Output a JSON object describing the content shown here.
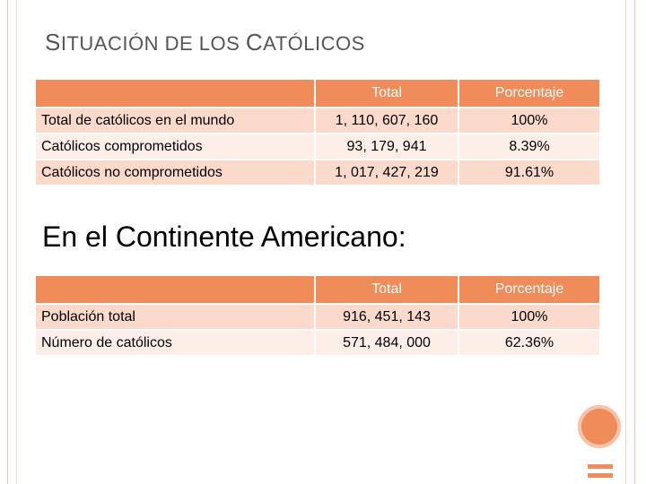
{
  "slide": {
    "title_first": "S",
    "title_rest1": "ITUACIÓN DE LOS ",
    "title_cap2": "C",
    "title_rest2": "ATÓLICOS",
    "subtitle": "En el Continente Americano:"
  },
  "table1": {
    "headers": [
      "",
      "Total",
      "Porcentaje"
    ],
    "rows": [
      [
        "Total de católicos en el mundo",
        "1, 110, 607, 160",
        "100%"
      ],
      [
        "Católicos comprometidos",
        "93, 179, 941",
        "8.39%"
      ],
      [
        "Católicos no comprometidos",
        "1, 017, 427, 219",
        "91.61%"
      ]
    ]
  },
  "table2": {
    "headers": [
      "",
      "Total",
      "Porcentaje"
    ],
    "rows": [
      [
        "Población total",
        "916, 451, 143",
        "100%"
      ],
      [
        "Número de católicos",
        "571, 484, 000",
        "62.36%"
      ]
    ]
  },
  "colors": {
    "accent": "#f08c5a",
    "row_dark": "#fbd9cb",
    "row_light": "#fdeee7"
  }
}
